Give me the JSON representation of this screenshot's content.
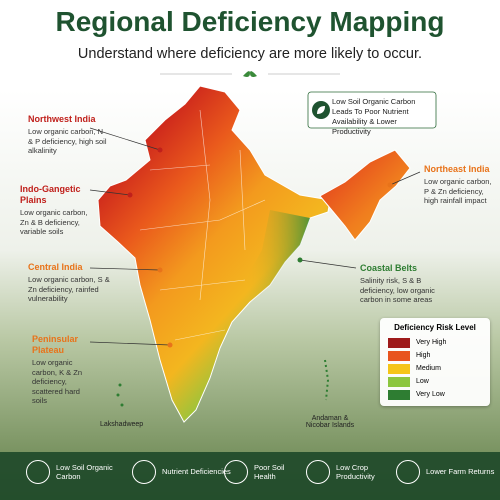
{
  "header": {
    "title": "Regional Deficiency Mapping",
    "subtitle": "Understand where deficiency are more likely to occur."
  },
  "callout": "Low Soil Organic Carbon Leads To Poor Nutrient Availability & Lower Productivity",
  "regions": [
    {
      "name": "Northwest India",
      "description": "Low organic carbon, N & P deficiency, high soil alkalinity",
      "color": "#c0201b"
    },
    {
      "name": "Indo-Gangetic Plains",
      "description": "Low organic carbon, Zn & B deficiency, variable soils",
      "color": "#c0201b"
    },
    {
      "name": "Central India",
      "description": "Low organic carbon, S & Zn deficiency, rainfed vulnerability",
      "color": "#e8731a"
    },
    {
      "name": "Peninsular Plateau",
      "description": "Low organic carbon, K & Zn deficiency, scattered hard soils",
      "color": "#e8731a"
    },
    {
      "name": "Northeast India",
      "description": "Low organic carbon, P & Zn deficiency, high rainfall impact",
      "color": "#e8731a"
    },
    {
      "name": "Coastal Belts",
      "description": "Salinity risk, S & B deficiency, low organic carbon in some areas",
      "color": "#2e7d32"
    }
  ],
  "islands": [
    "Lakshadweep",
    "Andaman & Nicobar Islands"
  ],
  "legend": {
    "title": "Deficiency Risk Level",
    "levels": [
      {
        "label": "Very High",
        "color": "#9e1a1a"
      },
      {
        "label": "High",
        "color": "#e8541e"
      },
      {
        "label": "Medium",
        "color": "#f5c518"
      },
      {
        "label": "Low",
        "color": "#8cc63f"
      },
      {
        "label": "Very Low",
        "color": "#2e7d32"
      }
    ]
  },
  "footer": [
    "Low Soil Organic Carbon",
    "Nutrient Deficiencies",
    "Poor Soil Health",
    "Low Crop Productivity",
    "Lower Farm Returns"
  ]
}
